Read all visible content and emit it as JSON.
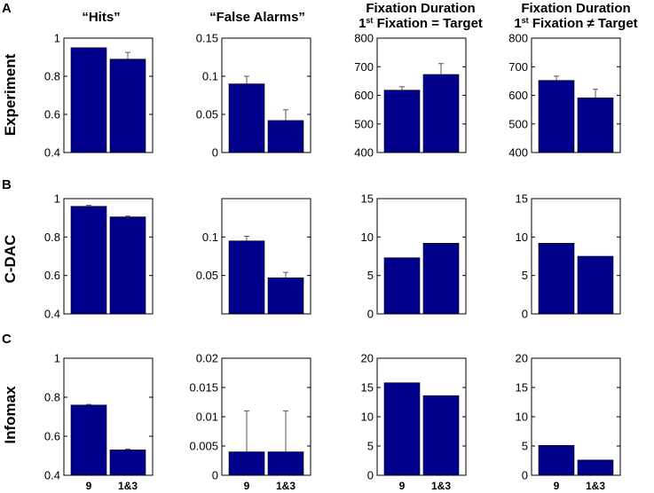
{
  "colors": {
    "bar": "#00008b",
    "axis": "#000000"
  },
  "column_titles": [
    {
      "line1": "“Hits”"
    },
    {
      "line1": "“False Alarms”"
    },
    {
      "line1": "Fixation Duration",
      "l2_pre": "1",
      "l2_sup": "st",
      "l2_post": " Fixation = Target"
    },
    {
      "line1": "Fixation Duration",
      "l2_pre": "1",
      "l2_sup": "st",
      "l2_post": " Fixation ≠ Target"
    }
  ],
  "rows": [
    {
      "letter": "A",
      "label": "Experiment"
    },
    {
      "letter": "B",
      "label": "C-DAC"
    },
    {
      "letter": "C",
      "label": "Infomax"
    }
  ],
  "chart_data": [
    {
      "type": "bar",
      "row": "Experiment",
      "title": "“Hits”",
      "categories": [
        "9",
        "1&3"
      ],
      "values": [
        0.95,
        0.89
      ],
      "errors": [
        0,
        0.035
      ],
      "ylim": [
        0.4,
        1
      ],
      "yticks": [
        "0.4",
        "0.6",
        "0.8",
        "1"
      ]
    },
    {
      "type": "bar",
      "row": "Experiment",
      "title": "“False Alarms”",
      "categories": [
        "9",
        "1&3"
      ],
      "values": [
        0.09,
        0.042
      ],
      "errors": [
        0.01,
        0.014
      ],
      "ylim": [
        0,
        0.15
      ],
      "yticks": [
        "0",
        "0.05",
        "0.1",
        "0.15"
      ]
    },
    {
      "type": "bar",
      "row": "Experiment",
      "title": "Fixation Duration 1st Fixation = Target",
      "categories": [
        "9",
        "1&3"
      ],
      "values": [
        618,
        673
      ],
      "errors": [
        12,
        38
      ],
      "ylim": [
        400,
        800
      ],
      "yticks": [
        "400",
        "500",
        "600",
        "700",
        "800"
      ]
    },
    {
      "type": "bar",
      "row": "Experiment",
      "title": "Fixation Duration 1st Fixation ≠ Target",
      "categories": [
        "9",
        "1&3"
      ],
      "values": [
        652,
        591
      ],
      "errors": [
        15,
        30
      ],
      "ylim": [
        400,
        800
      ],
      "yticks": [
        "400",
        "500",
        "600",
        "700",
        "800"
      ]
    },
    {
      "type": "bar",
      "row": "C-DAC",
      "title": "“Hits”",
      "categories": [
        "9",
        "1&3"
      ],
      "values": [
        0.96,
        0.905
      ],
      "errors": [
        0.005,
        0.004
      ],
      "ylim": [
        0.4,
        1
      ],
      "yticks": [
        "0.4",
        "0.6",
        "0.8",
        "1"
      ]
    },
    {
      "type": "bar",
      "row": "C-DAC",
      "title": "“False Alarms”",
      "categories": [
        "9",
        "1&3"
      ],
      "values": [
        0.095,
        0.047
      ],
      "errors": [
        0.006,
        0.007
      ],
      "ylim": [
        0,
        0.15
      ],
      "yticks": [
        "0.05",
        "0.1"
      ]
    },
    {
      "type": "bar",
      "row": "C-DAC",
      "title": "Fixation Duration 1st Fixation = Target",
      "categories": [
        "9",
        "1&3"
      ],
      "values": [
        7.3,
        9.2
      ],
      "errors": [
        0,
        0
      ],
      "ylim": [
        0,
        15
      ],
      "yticks": [
        "0",
        "5",
        "10",
        "15"
      ]
    },
    {
      "type": "bar",
      "row": "C-DAC",
      "title": "Fixation Duration 1st Fixation ≠ Target",
      "categories": [
        "9",
        "1&3"
      ],
      "values": [
        9.2,
        7.5
      ],
      "errors": [
        0,
        0
      ],
      "ylim": [
        0,
        15
      ],
      "yticks": [
        "0",
        "5",
        "10",
        "15"
      ]
    },
    {
      "type": "bar",
      "row": "Infomax",
      "title": "“Hits”",
      "categories": [
        "9",
        "1&3"
      ],
      "values": [
        0.76,
        0.53
      ],
      "errors": [
        0.003,
        0.004
      ],
      "ylim": [
        0.4,
        1
      ],
      "yticks": [
        "0.4",
        "0.6",
        "0.8",
        "1"
      ]
    },
    {
      "type": "bar",
      "row": "Infomax",
      "title": "“False Alarms”",
      "categories": [
        "9",
        "1&3"
      ],
      "values": [
        0.004,
        0.004
      ],
      "errors": [
        0.007,
        0.007
      ],
      "ylim": [
        0,
        0.02
      ],
      "yticks": [
        "0",
        "0.005",
        "0.01",
        "0.015",
        "0.02"
      ]
    },
    {
      "type": "bar",
      "row": "Infomax",
      "title": "Fixation Duration 1st Fixation = Target",
      "categories": [
        "9",
        "1&3"
      ],
      "values": [
        15.8,
        13.6
      ],
      "errors": [
        0,
        0
      ],
      "ylim": [
        0,
        20
      ],
      "yticks": [
        "0",
        "5",
        "10",
        "15",
        "20"
      ]
    },
    {
      "type": "bar",
      "row": "Infomax",
      "title": "Fixation Duration 1st Fixation ≠ Target",
      "categories": [
        "9",
        "1&3"
      ],
      "values": [
        5.1,
        2.6
      ],
      "errors": [
        0,
        0
      ],
      "ylim": [
        0,
        20
      ],
      "yticks": [
        "0",
        "5",
        "10",
        "15",
        "20"
      ]
    }
  ]
}
